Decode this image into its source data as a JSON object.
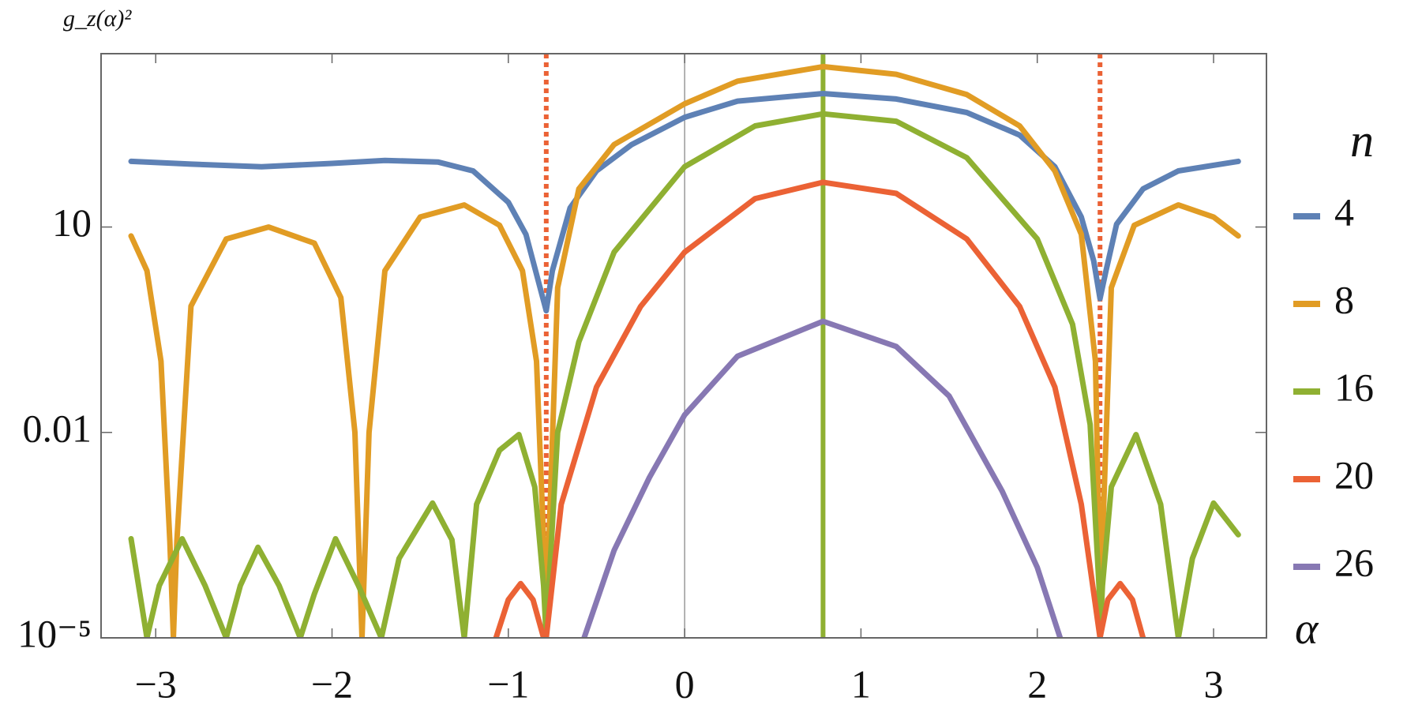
{
  "chart_data": {
    "type": "line",
    "y_label": "g_z(α)²",
    "x_label": "α",
    "legend_title": "n",
    "legend": "right",
    "log_y": true,
    "xlim": [
      -3.31,
      3.3
    ],
    "ylim": [
      1e-05,
      3400
    ],
    "xticks": [
      {
        "value": -3,
        "label": "−3"
      },
      {
        "value": -2,
        "label": "−2"
      },
      {
        "value": -1,
        "label": "−1"
      },
      0,
      1,
      2,
      3
    ],
    "yticks": [
      {
        "value": 1e-05,
        "label": "10⁻⁵"
      },
      0.01,
      10
    ],
    "reference_lines": [
      {
        "x": -0.785,
        "color": "#eb6235",
        "style": "dotted"
      },
      {
        "x": 2.356,
        "color": "#eb6235",
        "style": "dotted"
      },
      {
        "x": 0.785,
        "color": "#8fb032",
        "style": "solid"
      }
    ],
    "series": [
      {
        "name": "4",
        "color": "#5e81b5",
        "x": [
          -3.14,
          -2.8,
          -2.4,
          -2,
          -1.7,
          -1.4,
          -1.2,
          -1.0,
          -0.9,
          -0.82,
          -0.785,
          -0.75,
          -0.65,
          -0.5,
          -0.3,
          0,
          0.3,
          0.785,
          1.2,
          1.6,
          1.9,
          2.1,
          2.25,
          2.32,
          2.356,
          2.39,
          2.45,
          2.6,
          2.8,
          3.14
        ],
        "values": [
          91,
          83,
          76,
          85,
          94,
          89,
          66,
          23,
          7.8,
          1.3,
          0.6,
          2.3,
          19,
          66,
          160,
          400,
          690,
          890,
          740,
          470,
          220,
          76,
          14,
          3.2,
          0.9,
          2.3,
          11,
          36,
          66,
          91
        ]
      },
      {
        "name": "8",
        "color": "#e19c24",
        "x": [
          -3.14,
          -3.05,
          -2.97,
          -2.92,
          -2.9,
          -2.88,
          -2.8,
          -2.6,
          -2.36,
          -2.1,
          -1.95,
          -1.87,
          -1.83,
          -1.79,
          -1.7,
          -1.5,
          -1.25,
          -1.05,
          -0.92,
          -0.84,
          -0.8,
          -0.785,
          -0.77,
          -0.72,
          -0.6,
          -0.4,
          0,
          0.3,
          0.785,
          1.2,
          1.6,
          1.9,
          2.1,
          2.25,
          2.33,
          2.35,
          2.356,
          2.37,
          2.42,
          2.55,
          2.8,
          3.0,
          3.14
        ],
        "values": [
          7.4,
          2.3,
          0.11,
          0.00026,
          1e-05,
          0.00026,
          0.7,
          6.7,
          10,
          5.8,
          0.93,
          0.01,
          1e-05,
          0.01,
          2.3,
          14,
          21,
          10.6,
          2.3,
          0.11,
          0.00026,
          1e-05,
          0.00026,
          1.3,
          36,
          160,
          630,
          1350,
          2200,
          1700,
          860,
          300,
          66,
          7.8,
          0.11,
          0.00026,
          1e-05,
          0.00026,
          1.3,
          10.6,
          21,
          14,
          7.4
        ]
      },
      {
        "name": "16",
        "color": "#8fb032",
        "x": [
          -3.14,
          -3.05,
          -2.98,
          -2.85,
          -2.72,
          -2.6,
          -2.52,
          -2.42,
          -2.3,
          -2.18,
          -2.1,
          -1.98,
          -1.85,
          -1.72,
          -1.62,
          -1.43,
          -1.32,
          -1.25,
          -1.18,
          -1.05,
          -0.94,
          -0.85,
          -0.8,
          -0.785,
          -0.77,
          -0.72,
          -0.6,
          -0.4,
          0,
          0.4,
          0.785,
          1.2,
          1.6,
          2.0,
          2.2,
          2.3,
          2.35,
          2.356,
          2.37,
          2.42,
          2.56,
          2.7,
          2.8,
          2.88,
          3.0,
          3.14
        ],
        "values": [
          0.00028,
          1e-05,
          5.8e-05,
          0.00028,
          5.8e-05,
          1e-05,
          5.8e-05,
          0.00021,
          5.8e-05,
          1e-05,
          4.4e-05,
          0.00028,
          5.8e-05,
          1e-05,
          0.000144,
          0.00093,
          0.00027,
          1e-05,
          0.00089,
          0.0055,
          0.0093,
          0.0016,
          5.8e-05,
          1e-05,
          5.8e-05,
          0.01,
          0.21,
          4.3,
          76,
          300,
          450,
          350,
          103,
          6.7,
          0.38,
          0.013,
          5.8e-05,
          1e-05,
          5.8e-05,
          0.0016,
          0.0093,
          0.00089,
          1e-05,
          0.000144,
          0.00093,
          0.00032
        ]
      },
      {
        "name": "20",
        "color": "#eb6235",
        "x": [
          -1.07,
          -1.0,
          -0.93,
          -0.86,
          -0.8,
          -0.785,
          -0.7,
          -0.5,
          -0.25,
          0,
          0.4,
          0.785,
          1.2,
          1.6,
          1.9,
          2.1,
          2.25,
          2.356,
          2.4,
          2.47,
          2.54,
          2.6
        ],
        "values": [
          1e-05,
          3.6e-05,
          6.2e-05,
          3.6e-05,
          1e-05,
          1e-05,
          0.00089,
          0.046,
          0.69,
          4.3,
          26,
          45,
          31,
          6.7,
          0.69,
          0.046,
          0.00089,
          1e-05,
          3.6e-05,
          6.2e-05,
          3.6e-05,
          1e-05
        ]
      },
      {
        "name": "26",
        "color": "#8778b3",
        "x": [
          -0.57,
          -0.4,
          -0.2,
          0,
          0.3,
          0.785,
          1.2,
          1.5,
          1.8,
          2.0,
          2.13
        ],
        "values": [
          1e-05,
          0.00019,
          0.0022,
          0.018,
          0.13,
          0.42,
          0.18,
          0.034,
          0.0014,
          0.000107,
          1e-05
        ]
      }
    ]
  }
}
